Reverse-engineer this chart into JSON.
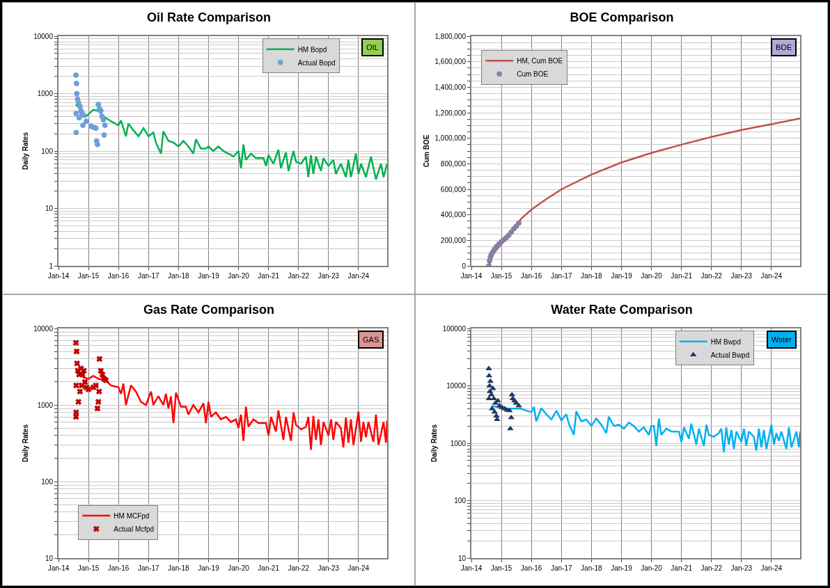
{
  "chart_data": [
    {
      "type": "line",
      "title": "Oil Rate Comparison",
      "ylabel": "Daily Rates",
      "log": true,
      "grid": true,
      "legend": "top right",
      "annotations": [
        "OIL"
      ],
      "xlim": [
        "2014-01-01",
        "2024-12-15"
      ],
      "xticks": [
        {
          "value": "2014-01",
          "label": "Jan-14"
        },
        {
          "value": "2015-01",
          "label": "Jan-15"
        },
        {
          "value": "2016-01",
          "label": "Jan-16"
        },
        {
          "value": "2017-01",
          "label": "Jan-17"
        },
        {
          "value": "2018-01",
          "label": "Jan-18"
        },
        {
          "value": "2019-01",
          "label": "Jan-19"
        },
        {
          "value": "2020-01",
          "label": "Jan-20"
        },
        {
          "value": "2021-01",
          "label": "Jan-21"
        },
        {
          "value": "2022-01",
          "label": "Jan-22"
        },
        {
          "value": "2023-01",
          "label": "Jan-23"
        },
        {
          "value": "2024-01",
          "label": "Jan-24"
        }
      ],
      "ylim": [
        1,
        10000
      ],
      "yticks": [
        1,
        {
          "value": 2,
          "label": null
        },
        {
          "value": 3,
          "label": null
        },
        {
          "value": 4,
          "label": null
        },
        {
          "value": 5,
          "label": null
        },
        {
          "value": 6,
          "label": null
        },
        {
          "value": 7,
          "label": null
        },
        {
          "value": 8,
          "label": null
        },
        {
          "value": 9,
          "label": null
        },
        10,
        {
          "value": 20,
          "label": null
        },
        {
          "value": 30,
          "label": null
        },
        {
          "value": 40,
          "label": null
        },
        {
          "value": 50,
          "label": null
        },
        {
          "value": 60,
          "label": null
        },
        {
          "value": 70,
          "label": null
        },
        {
          "value": 80,
          "label": null
        },
        {
          "value": 90,
          "label": null
        },
        100,
        {
          "value": 200,
          "label": null
        },
        {
          "value": 300,
          "label": null
        },
        {
          "value": 400,
          "label": null
        },
        {
          "value": 500,
          "label": null
        },
        {
          "value": 600,
          "label": null
        },
        {
          "value": 700,
          "label": null
        },
        {
          "value": 800,
          "label": null
        },
        {
          "value": 900,
          "label": null
        },
        1000,
        {
          "value": 2000,
          "label": null
        },
        {
          "value": 3000,
          "label": null
        },
        {
          "value": 4000,
          "label": null
        },
        {
          "value": 5000,
          "label": null
        },
        {
          "value": 6000,
          "label": null
        },
        {
          "value": 7000,
          "label": null
        },
        {
          "value": 8000,
          "label": null
        },
        {
          "value": 9000,
          "label": null
        },
        10000
      ],
      "series": [
        {
          "name": "HM Bopd",
          "type": "line",
          "color": "#00b050",
          "x": [
            "2014-08",
            "2014-12",
            "2015-03",
            "2015-05",
            "2015-07",
            "2015-10",
            "2016-01",
            "2016-02",
            "2016-04",
            "2016-05",
            "2016-07",
            "2016-09",
            "2016-11",
            "2017-01",
            "2017-03",
            "2017-04",
            "2017-06",
            "2017-07",
            "2017-09",
            "2017-11",
            "2018-01",
            "2018-03",
            "2018-05",
            "2018-07",
            "2018-08",
            "2018-10",
            "2018-12",
            "2019-01",
            "2019-03",
            "2019-05",
            "2019-07",
            "2019-09",
            "2019-11",
            "2020-01",
            "2020-02",
            "2020-03",
            "2020-04",
            "2020-06",
            "2020-08",
            "2020-11",
            "2020-12",
            "2021-01",
            "2021-03",
            "2021-05",
            "2021-06",
            "2021-08",
            "2021-09",
            "2021-11",
            "2021-12",
            "2022-02",
            "2022-04",
            "2022-05",
            "2022-06",
            "2022-07",
            "2022-08",
            "2022-10",
            "2022-11",
            "2023-01",
            "2023-03",
            "2023-04",
            "2023-06",
            "2023-08",
            "2023-09",
            "2023-10",
            "2023-12",
            "2024-01",
            "2024-02",
            "2024-04",
            "2024-06",
            "2024-08",
            "2024-10",
            "2024-11",
            "2024-12-15"
          ],
          "values": [
            650,
            400,
            520,
            500,
            400,
            330,
            280,
            340,
            180,
            300,
            230,
            180,
            250,
            180,
            210,
            140,
            90,
            220,
            150,
            140,
            120,
            150,
            120,
            90,
            160,
            110,
            110,
            120,
            100,
            120,
            100,
            90,
            80,
            100,
            50,
            130,
            70,
            90,
            75,
            75,
            55,
            85,
            60,
            105,
            50,
            95,
            45,
            100,
            65,
            60,
            80,
            35,
            85,
            40,
            80,
            45,
            75,
            55,
            70,
            40,
            60,
            35,
            70,
            35,
            90,
            40,
            60,
            35,
            80,
            32,
            60,
            35,
            60
          ]
        },
        {
          "name": "Actual Bopd",
          "type": "scatter",
          "marker": "circle",
          "color": "#6f9fd8",
          "x": [
            "2014-08-01",
            "2014-08-03",
            "2014-08-04",
            "2014-08-08",
            "2014-08-12",
            "2014-08-20",
            "2014-09-01",
            "2014-09-10",
            "2014-09-20",
            "2014-10-01",
            "2014-10-15",
            "2014-10-25",
            "2014-11-05",
            "2014-11-20",
            "2014-12-05",
            "2014-12-20",
            "2015-01-10",
            "2015-02-01",
            "2015-03-01",
            "2015-04-01",
            "2015-04-10",
            "2015-04-20",
            "2015-05-01",
            "2015-05-15",
            "2015-06-01",
            "2015-06-15",
            "2015-07-01",
            "2015-07-10",
            "2015-07-20"
          ],
          "values": [
            2100,
            450,
            210,
            1500,
            1000,
            800,
            700,
            380,
            600,
            500,
            450,
            280,
            420,
            null,
            330,
            null,
            null,
            270,
            260,
            250,
            150,
            130,
            650,
            550,
            500,
            400,
            350,
            190,
            280
          ]
        }
      ]
    },
    {
      "type": "line",
      "title": "BOE Comparison",
      "ylabel": "Cum BOE",
      "grid": true,
      "legend": "top left",
      "annotations": [
        "BOE"
      ],
      "xlim": [
        "2014-01-01",
        "2024-12-15"
      ],
      "xticks": [
        {
          "value": "2014-01",
          "label": "Jan-14"
        },
        {
          "value": "2015-01",
          "label": "Jan-15"
        },
        {
          "value": "2016-01",
          "label": "Jan-16"
        },
        {
          "value": "2017-01",
          "label": "Jan-17"
        },
        {
          "value": "2018-01",
          "label": "Jan-18"
        },
        {
          "value": "2019-01",
          "label": "Jan-19"
        },
        {
          "value": "2020-01",
          "label": "Jan-20"
        },
        {
          "value": "2021-01",
          "label": "Jan-21"
        },
        {
          "value": "2022-01",
          "label": "Jan-22"
        },
        {
          "value": "2023-01",
          "label": "Jan-23"
        },
        {
          "value": "2024-01",
          "label": "Jan-24"
        }
      ],
      "ylim": [
        0,
        1800000
      ],
      "yticks": [
        0,
        {
          "value": 50000,
          "label": null
        },
        {
          "value": 100000,
          "label": null
        },
        {
          "value": 150000,
          "label": null
        },
        {
          "value": 200000,
          "label": "200,000"
        },
        {
          "value": 250000,
          "label": null
        },
        {
          "value": 300000,
          "label": null
        },
        {
          "value": 350000,
          "label": null
        },
        {
          "value": 400000,
          "label": "400,000"
        },
        {
          "value": 450000,
          "label": null
        },
        {
          "value": 500000,
          "label": null
        },
        {
          "value": 550000,
          "label": null
        },
        {
          "value": 600000,
          "label": "600,000"
        },
        {
          "value": 650000,
          "label": null
        },
        {
          "value": 700000,
          "label": null
        },
        {
          "value": 750000,
          "label": null
        },
        {
          "value": 800000,
          "label": "800,000"
        },
        {
          "value": 850000,
          "label": null
        },
        {
          "value": 900000,
          "label": null
        },
        {
          "value": 950000,
          "label": null
        },
        {
          "value": 1000000,
          "label": "1,000,000"
        },
        {
          "value": 1050000,
          "label": null
        },
        {
          "value": 1100000,
          "label": null
        },
        {
          "value": 1150000,
          "label": null
        },
        {
          "value": 1200000,
          "label": "1,200,000"
        },
        {
          "value": 1250000,
          "label": null
        },
        {
          "value": 1300000,
          "label": null
        },
        {
          "value": 1350000,
          "label": null
        },
        {
          "value": 1400000,
          "label": "1,400,000"
        },
        {
          "value": 1450000,
          "label": null
        },
        {
          "value": 1500000,
          "label": null
        },
        {
          "value": 1550000,
          "label": null
        },
        {
          "value": 1600000,
          "label": "1,600,000"
        },
        {
          "value": 1650000,
          "label": null
        },
        {
          "value": 1700000,
          "label": null
        },
        {
          "value": 1750000,
          "label": null
        },
        {
          "value": 1800000,
          "label": "1,800,000"
        }
      ],
      "series": [
        {
          "name": "HM, Cum BOE",
          "type": "line",
          "color": "#c0504d",
          "x": [
            "2014-08",
            "2014-10",
            "2015-01",
            "2015-04",
            "2015-07",
            "2015-09",
            "2016-01",
            "2016-06",
            "2017-01",
            "2018-01",
            "2019-01",
            "2020-01",
            "2021-01",
            "2022-01",
            "2023-01",
            "2024-01",
            "2024-12-15"
          ],
          "values": [
            0,
            100000,
            170000,
            240000,
            320000,
            370000,
            440000,
            510000,
            600000,
            715000,
            810000,
            885000,
            950000,
            1010000,
            1065000,
            1110000,
            1155000
          ]
        },
        {
          "name": "Cum BOE",
          "type": "scatter",
          "marker": "circle",
          "color": "#8a7fa6",
          "x": [
            "2014-08-01",
            "2014-08-10",
            "2014-08-20",
            "2014-09-01",
            "2014-09-20",
            "2014-10-10",
            "2014-11-01",
            "2014-12-01",
            "2015-01-01",
            "2015-02-01",
            "2015-03-01",
            "2015-04-01",
            "2015-05-01",
            "2015-06-01",
            "2015-07-01",
            "2015-08-01"
          ],
          "values": [
            0,
            40000,
            70000,
            90000,
            110000,
            130000,
            150000,
            170000,
            190000,
            205000,
            220000,
            240000,
            265000,
            290000,
            310000,
            335000
          ]
        }
      ]
    },
    {
      "type": "line",
      "title": "Gas Rate Comparison",
      "ylabel": "Daily Rates",
      "log": true,
      "grid": true,
      "legend": "bottom left",
      "annotations": [
        "GAS"
      ],
      "xlim": [
        "2014-01-01",
        "2024-12-15"
      ],
      "xticks": [
        {
          "value": "2014-01",
          "label": "Jan-14"
        },
        {
          "value": "2015-01",
          "label": "Jan-15"
        },
        {
          "value": "2016-01",
          "label": "Jan-16"
        },
        {
          "value": "2017-01",
          "label": "Jan-17"
        },
        {
          "value": "2018-01",
          "label": "Jan-18"
        },
        {
          "value": "2019-01",
          "label": "Jan-19"
        },
        {
          "value": "2020-01",
          "label": "Jan-20"
        },
        {
          "value": "2021-01",
          "label": "Jan-21"
        },
        {
          "value": "2022-01",
          "label": "Jan-22"
        },
        {
          "value": "2023-01",
          "label": "Jan-23"
        },
        {
          "value": "2024-01",
          "label": "Jan-24"
        }
      ],
      "ylim": [
        10,
        10000
      ],
      "yticks": [
        10,
        {
          "value": 20,
          "label": null
        },
        {
          "value": 30,
          "label": null
        },
        {
          "value": 40,
          "label": null
        },
        {
          "value": 50,
          "label": null
        },
        {
          "value": 60,
          "label": null
        },
        {
          "value": 70,
          "label": null
        },
        {
          "value": 80,
          "label": null
        },
        {
          "value": 90,
          "label": null
        },
        100,
        {
          "value": 200,
          "label": null
        },
        {
          "value": 300,
          "label": null
        },
        {
          "value": 400,
          "label": null
        },
        {
          "value": 500,
          "label": null
        },
        {
          "value": 600,
          "label": null
        },
        {
          "value": 700,
          "label": null
        },
        {
          "value": 800,
          "label": null
        },
        {
          "value": 900,
          "label": null
        },
        1000,
        {
          "value": 2000,
          "label": null
        },
        {
          "value": 3000,
          "label": null
        },
        {
          "value": 4000,
          "label": null
        },
        {
          "value": 5000,
          "label": null
        },
        {
          "value": 6000,
          "label": null
        },
        {
          "value": 7000,
          "label": null
        },
        {
          "value": 8000,
          "label": null
        },
        {
          "value": 9000,
          "label": null
        },
        10000
      ],
      "series": [
        {
          "name": "HM MCFpd",
          "type": "line",
          "color": "#ff0000",
          "x": [
            "2014-08",
            "2014-11",
            "2015-01",
            "2015-03",
            "2015-05",
            "2015-08",
            "2015-10",
            "2016-01",
            "2016-02",
            "2016-03",
            "2016-04",
            "2016-06",
            "2016-08",
            "2016-10",
            "2016-12",
            "2017-02",
            "2017-03",
            "2017-05",
            "2017-07",
            "2017-08",
            "2017-09",
            "2017-10",
            "2017-11",
            "2017-12",
            "2018-02",
            "2018-04",
            "2018-05",
            "2018-07",
            "2018-09",
            "2018-11",
            "2018-12",
            "2019-01",
            "2019-02",
            "2019-04",
            "2019-06",
            "2019-08",
            "2019-10",
            "2019-12",
            "2020-01",
            "2020-02",
            "2020-03",
            "2020-04",
            "2020-05",
            "2020-07",
            "2020-09",
            "2020-12",
            "2021-01",
            "2021-02",
            "2021-04",
            "2021-05",
            "2021-07",
            "2021-08",
            "2021-10",
            "2021-11",
            "2021-12",
            "2022-02",
            "2022-04",
            "2022-05",
            "2022-06",
            "2022-07",
            "2022-08",
            "2022-09",
            "2022-10",
            "2022-11",
            "2023-01",
            "2023-02",
            "2023-03",
            "2023-04",
            "2023-06",
            "2023-07",
            "2023-08",
            "2023-09",
            "2023-10",
            "2023-11",
            "2024-01",
            "2024-02",
            "2024-03",
            "2024-04",
            "2024-05",
            "2024-07",
            "2024-08",
            "2024-09",
            "2024-11",
            "2024-12-01",
            "2024-12-15"
          ],
          "values": [
            3000,
            2300,
            2200,
            2400,
            2200,
            2100,
            1800,
            1700,
            1400,
            1900,
            1000,
            1800,
            1500,
            1100,
            1000,
            1500,
            1000,
            1300,
            1000,
            1400,
            900,
            1300,
            580,
            1450,
            950,
            950,
            750,
            1000,
            800,
            1050,
            580,
            1100,
            700,
            800,
            650,
            700,
            600,
            650,
            500,
            750,
            340,
            950,
            520,
            650,
            580,
            580,
            400,
            700,
            450,
            850,
            350,
            700,
            340,
            800,
            550,
            480,
            520,
            700,
            260,
            720,
            350,
            650,
            300,
            600,
            400,
            650,
            350,
            600,
            500,
            280,
            680,
            320,
            650,
            300,
            820,
            330,
            600,
            380,
            600,
            330,
            750,
            300,
            600,
            320,
            620
          ]
        },
        {
          "name": "Actual Mcfpd",
          "type": "scatter",
          "marker": "cross",
          "color": "#c00000",
          "x": [
            "2014-08-01",
            "2014-08-03",
            "2014-08-04",
            "2014-08-05",
            "2014-08-10",
            "2014-08-15",
            "2014-08-25",
            "2014-09-01",
            "2014-09-10",
            "2014-09-20",
            "2014-10-01",
            "2014-10-10",
            "2014-10-20",
            "2014-11-05",
            "2014-11-20",
            "2014-12-05",
            "2015-01-01",
            "2015-02-01",
            "2015-03-01",
            "2015-04-01",
            "2015-04-20",
            "2015-05-01",
            "2015-05-10",
            "2015-05-15",
            "2015-06-01",
            "2015-06-20",
            "2015-07-10",
            "2015-08-01"
          ],
          "values": [
            6500,
            700,
            800,
            1800,
            5000,
            3500,
            2800,
            1100,
            2500,
            1500,
            3000,
            1800,
            2500,
            2800,
            2000,
            1700,
            1600,
            null,
            1700,
            1800,
            900,
            1100,
            1500,
            4000,
            2800,
            2500,
            2200,
            2100
          ]
        }
      ]
    },
    {
      "type": "line",
      "title": "Water Rate Comparison",
      "ylabel": "Daily Rates",
      "log": true,
      "grid": true,
      "legend": "top right",
      "annotations": [
        "Water"
      ],
      "xlim": [
        "2014-01-01",
        "2024-12-15"
      ],
      "xticks": [
        {
          "value": "2014-01",
          "label": "Jan-14"
        },
        {
          "value": "2015-01",
          "label": "Jan-15"
        },
        {
          "value": "2016-01",
          "label": "Jan-16"
        },
        {
          "value": "2017-01",
          "label": "Jan-17"
        },
        {
          "value": "2018-01",
          "label": "Jan-18"
        },
        {
          "value": "2019-01",
          "label": "Jan-19"
        },
        {
          "value": "2020-01",
          "label": "Jan-20"
        },
        {
          "value": "2021-01",
          "label": "Jan-21"
        },
        {
          "value": "2022-01",
          "label": "Jan-22"
        },
        {
          "value": "2023-01",
          "label": "Jan-23"
        },
        {
          "value": "2024-01",
          "label": "Jan-24"
        }
      ],
      "ylim": [
        10,
        100000
      ],
      "yticks": [
        10,
        {
          "value": 20,
          "label": null
        },
        {
          "value": 30,
          "label": null
        },
        {
          "value": 40,
          "label": null
        },
        {
          "value": 50,
          "label": null
        },
        {
          "value": 60,
          "label": null
        },
        {
          "value": 70,
          "label": null
        },
        {
          "value": 80,
          "label": null
        },
        {
          "value": 90,
          "label": null
        },
        100,
        {
          "value": 200,
          "label": null
        },
        {
          "value": 300,
          "label": null
        },
        {
          "value": 400,
          "label": null
        },
        {
          "value": 500,
          "label": null
        },
        {
          "value": 600,
          "label": null
        },
        {
          "value": 700,
          "label": null
        },
        {
          "value": 800,
          "label": null
        },
        {
          "value": 900,
          "label": null
        },
        1000,
        {
          "value": 2000,
          "label": null
        },
        {
          "value": 3000,
          "label": null
        },
        {
          "value": 4000,
          "label": null
        },
        {
          "value": 5000,
          "label": null
        },
        {
          "value": 6000,
          "label": null
        },
        {
          "value": 7000,
          "label": null
        },
        {
          "value": 8000,
          "label": null
        },
        {
          "value": 9000,
          "label": null
        },
        10000,
        {
          "value": 20000,
          "label": null
        },
        {
          "value": 30000,
          "label": null
        },
        {
          "value": 40000,
          "label": null
        },
        {
          "value": 50000,
          "label": null
        },
        {
          "value": 60000,
          "label": null
        },
        {
          "value": 70000,
          "label": null
        },
        {
          "value": 80000,
          "label": null
        },
        {
          "value": 90000,
          "label": null
        },
        100000
      ],
      "series": [
        {
          "name": "HM Bwpd",
          "type": "line",
          "color": "#00b0f0",
          "x": [
            "2014-09",
            "2014-12",
            "2015-03",
            "2015-06",
            "2015-09",
            "2015-11",
            "2016-01",
            "2016-02",
            "2016-03",
            "2016-05",
            "2016-07",
            "2016-09",
            "2016-11",
            "2017-01",
            "2017-03",
            "2017-04",
            "2017-06",
            "2017-07",
            "2017-09",
            "2017-11",
            "2018-01",
            "2018-03",
            "2018-05",
            "2018-07",
            "2018-08",
            "2018-10",
            "2018-12",
            "2019-02",
            "2019-04",
            "2019-06",
            "2019-08",
            "2019-10",
            "2019-12",
            "2020-01",
            "2020-02",
            "2020-03",
            "2020-04",
            "2020-05",
            "2020-07",
            "2020-09",
            "2020-12",
            "2021-01",
            "2021-02",
            "2021-04",
            "2021-05",
            "2021-07",
            "2021-08",
            "2021-10",
            "2021-11",
            "2021-12",
            "2022-02",
            "2022-04",
            "2022-05",
            "2022-06",
            "2022-07",
            "2022-08",
            "2022-09",
            "2022-10",
            "2022-11",
            "2023-01",
            "2023-02",
            "2023-03",
            "2023-04",
            "2023-06",
            "2023-07",
            "2023-08",
            "2023-09",
            "2023-10",
            "2023-11",
            "2024-01",
            "2024-02",
            "2024-03",
            "2024-04",
            "2024-05",
            "2024-07",
            "2024-08",
            "2024-09",
            "2024-11",
            "2024-12-01",
            "2024-12-15"
          ],
          "values": [
            4500,
            4200,
            4000,
            4000,
            4000,
            3700,
            3500,
            4300,
            2400,
            4100,
            3200,
            2600,
            3700,
            2500,
            3200,
            2200,
            1400,
            3600,
            2400,
            2600,
            2000,
            2700,
            2100,
            1500,
            2900,
            2000,
            2100,
            1800,
            2300,
            2000,
            1600,
            1900,
            1400,
            2000,
            2000,
            900,
            2700,
            1400,
            1800,
            1600,
            1600,
            1050,
            1900,
            1200,
            2200,
            950,
            1800,
            900,
            2100,
            1400,
            1300,
            1500,
            1800,
            700,
            1900,
            950,
            1700,
            800,
            1600,
            1050,
            1800,
            900,
            1600,
            1300,
            750,
            1800,
            850,
            1700,
            800,
            2100,
            950,
            1500,
            1100,
            1600,
            800,
            1900,
            850,
            1600,
            850,
            1600
          ]
        },
        {
          "name": "Actual Bwpd",
          "type": "scatter",
          "marker": "triangle",
          "color": "#1f3864",
          "x": [
            "2014-08-01",
            "2014-08-03",
            "2014-08-05",
            "2014-08-10",
            "2014-08-15",
            "2014-08-20",
            "2014-09-01",
            "2014-09-10",
            "2014-09-20",
            "2014-10-01",
            "2014-10-10",
            "2014-10-20",
            "2014-11-01",
            "2014-11-10",
            "2014-11-20",
            "2014-12-10",
            "2015-01-10",
            "2015-02-10",
            "2015-03-10",
            "2015-04-10",
            "2015-04-20",
            "2015-05-01",
            "2015-05-10",
            "2015-05-20",
            "2015-06-10",
            "2015-07-01",
            "2015-08-01"
          ],
          "values": [
            20000,
            6000,
            15000,
            10000,
            8000,
            12000,
            7000,
            4000,
            9000,
            6000,
            3500,
            5000,
            3000,
            2600,
            5500,
            4500,
            4200,
            4000,
            3800,
            3700,
            1800,
            2800,
            7000,
            6000,
            5500,
            5000,
            4500
          ]
        }
      ]
    }
  ]
}
